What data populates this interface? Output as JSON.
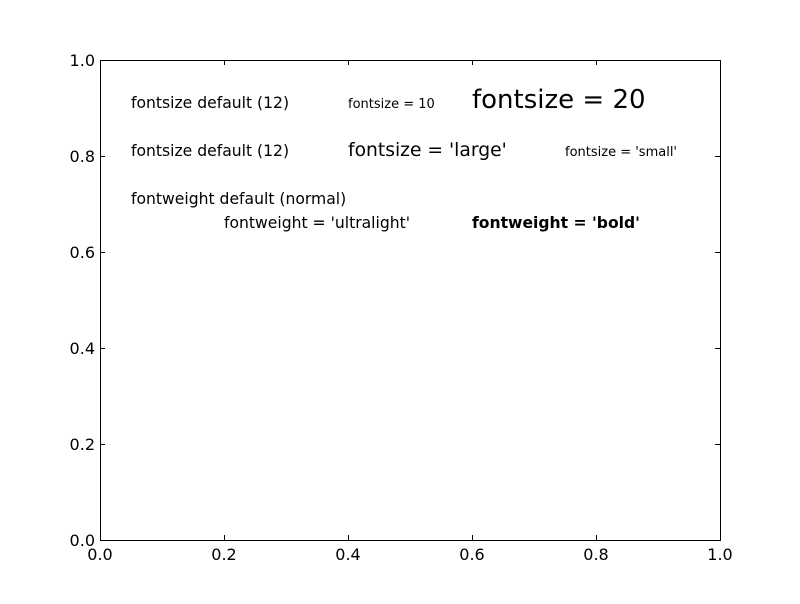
{
  "chart_data": {
    "type": "scatter",
    "title": "",
    "xlabel": "",
    "ylabel": "",
    "xlim": [
      0.0,
      1.0
    ],
    "ylim": [
      0.0,
      1.0
    ],
    "grid": false,
    "x_ticks": [
      {
        "value": 0.0,
        "label": "0.0"
      },
      {
        "value": 0.2,
        "label": "0.2"
      },
      {
        "value": 0.4,
        "label": "0.4"
      },
      {
        "value": 0.6,
        "label": "0.6"
      },
      {
        "value": 0.8,
        "label": "0.8"
      },
      {
        "value": 1.0,
        "label": "1.0"
      }
    ],
    "y_ticks": [
      {
        "value": 0.0,
        "label": "0.0"
      },
      {
        "value": 0.2,
        "label": "0.2"
      },
      {
        "value": 0.4,
        "label": "0.4"
      },
      {
        "value": 0.6,
        "label": "0.6"
      },
      {
        "value": 0.8,
        "label": "0.8"
      },
      {
        "value": 1.0,
        "label": "1.0"
      }
    ],
    "annotations": [
      {
        "name": "fontsize-default-1",
        "text": "fontsize default (12)",
        "x": 0.05,
        "y": 0.9,
        "fontsize": 12,
        "fontweight": "normal"
      },
      {
        "name": "fontsize-10",
        "text": "fontsize = 10",
        "x": 0.4,
        "y": 0.9,
        "fontsize": 10,
        "fontweight": "normal"
      },
      {
        "name": "fontsize-20",
        "text": "fontsize = 20",
        "x": 0.6,
        "y": 0.9,
        "fontsize": 20,
        "fontweight": "normal"
      },
      {
        "name": "fontsize-default-2",
        "text": "fontsize default (12)",
        "x": 0.05,
        "y": 0.8,
        "fontsize": 12,
        "fontweight": "normal"
      },
      {
        "name": "fontsize-large",
        "text": "fontsize = 'large'",
        "x": 0.4,
        "y": 0.8,
        "fontsize": 14.4,
        "fontweight": "normal"
      },
      {
        "name": "fontsize-small",
        "text": "fontsize = 'small'",
        "x": 0.75,
        "y": 0.8,
        "fontsize": 10,
        "fontweight": "normal"
      },
      {
        "name": "fontweight-default",
        "text": "fontweight default (normal)",
        "x": 0.05,
        "y": 0.7,
        "fontsize": 12,
        "fontweight": "normal"
      },
      {
        "name": "fontweight-ultralight",
        "text": "fontweight = 'ultralight'",
        "x": 0.2,
        "y": 0.65,
        "fontsize": 12,
        "fontweight": "normal"
      },
      {
        "name": "fontweight-bold",
        "text": "fontweight = 'bold'",
        "x": 0.6,
        "y": 0.65,
        "fontsize": 12,
        "fontweight": "bold"
      }
    ]
  }
}
